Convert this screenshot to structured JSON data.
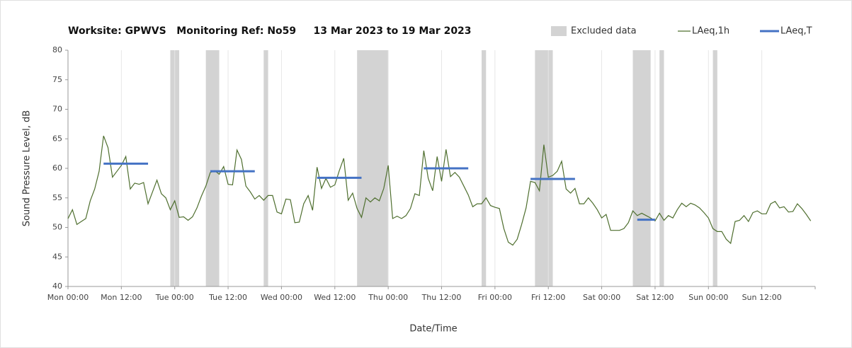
{
  "chart_data": {
    "type": "line",
    "title": "Worksite: GPWVS   Monitoring Ref: No59     13 Mar 2023 to 19 Mar 2023",
    "xlabel": "Date/Time",
    "ylabel": "Sound Pressure Level, dB",
    "xlim": [
      0,
      168
    ],
    "ylim": [
      40,
      80
    ],
    "yticks": [
      40,
      45,
      50,
      55,
      60,
      65,
      70,
      75,
      80
    ],
    "xticks": [
      {
        "value": 0,
        "label": "Mon 00:00"
      },
      {
        "value": 12,
        "label": "Mon 12:00"
      },
      {
        "value": 24,
        "label": "Tue 00:00"
      },
      {
        "value": 36,
        "label": "Tue 12:00"
      },
      {
        "value": 48,
        "label": "Wed 00:00"
      },
      {
        "value": 60,
        "label": "Wed 12:00"
      },
      {
        "value": 72,
        "label": "Thu 00:00"
      },
      {
        "value": 84,
        "label": "Thu 12:00"
      },
      {
        "value": 96,
        "label": "Fri 00:00"
      },
      {
        "value": 108,
        "label": "Fri 12:00"
      },
      {
        "value": 120,
        "label": "Sat 00:00"
      },
      {
        "value": 132,
        "label": "Sat 12:00"
      },
      {
        "value": 144,
        "label": "Sun 00:00"
      },
      {
        "value": 156,
        "label": "Sun 12:00"
      }
    ],
    "xgrid": true,
    "legend": "top right",
    "excluded": {
      "name": "Excluded data",
      "color": "#d3d3d3",
      "ranges": [
        [
          23,
          25
        ],
        [
          31,
          34
        ],
        [
          44,
          45
        ],
        [
          65,
          72
        ],
        [
          93,
          94
        ],
        [
          105,
          109
        ],
        [
          127,
          131
        ],
        [
          133,
          134
        ],
        [
          145,
          146
        ]
      ]
    },
    "series": [
      {
        "name": "LAeq,1h",
        "color": "#4f6f2f",
        "x": [
          0,
          1,
          2,
          3,
          4,
          5,
          6,
          7,
          8,
          9,
          10,
          11,
          12,
          13,
          14,
          15,
          16,
          17,
          18,
          19,
          20,
          21,
          22,
          23,
          24,
          25,
          26,
          27,
          28,
          29,
          30,
          31,
          32,
          33,
          34,
          35,
          36,
          37,
          38,
          39,
          40,
          41,
          42,
          43,
          44,
          45,
          46,
          47,
          48,
          49,
          50,
          51,
          52,
          53,
          54,
          55,
          56,
          57,
          58,
          59,
          60,
          61,
          62,
          63,
          64,
          65,
          66,
          67,
          68,
          69,
          70,
          71,
          72,
          73,
          74,
          75,
          76,
          77,
          78,
          79,
          80,
          81,
          82,
          83,
          84,
          85,
          86,
          87,
          88,
          89,
          90,
          91,
          92,
          93,
          94,
          95,
          96,
          97,
          98,
          99,
          100,
          101,
          102,
          103,
          104,
          105,
          106,
          107,
          108,
          109,
          110,
          111,
          112,
          113,
          114,
          115,
          116,
          117,
          118,
          119,
          120,
          121,
          122,
          123,
          124,
          125,
          126,
          127,
          128,
          129,
          130,
          131,
          132,
          133,
          134,
          135,
          136,
          137,
          138,
          139,
          140,
          141,
          142,
          143,
          144,
          145,
          146,
          147,
          148,
          149,
          150,
          151,
          152,
          153,
          154,
          155,
          156,
          157,
          158,
          159,
          160,
          161,
          162,
          163,
          164,
          165,
          166,
          167
        ],
        "values": [
          51.5,
          53,
          50.5,
          51,
          51.5,
          54.5,
          56.5,
          59.5,
          65.5,
          63.5,
          58.5,
          59.5,
          60.5,
          62,
          56.5,
          57.5,
          57.3,
          57.6,
          54,
          56,
          58,
          55.7,
          55,
          53,
          54.5,
          51.7,
          51.8,
          51.2,
          51.8,
          53.3,
          55.3,
          57,
          59.3,
          59.6,
          59,
          60.3,
          57.3,
          57.2,
          63.1,
          61.5,
          57,
          56,
          54.8,
          55.4,
          54.6,
          55.4,
          55.4,
          52.6,
          52.3,
          54.8,
          54.7,
          50.8,
          50.9,
          54,
          55.4,
          52.9,
          60.2,
          56.6,
          58.3,
          56.8,
          57.2,
          59.6,
          61.7,
          54.6,
          55.8,
          53.2,
          51.7,
          55,
          54.3,
          55,
          54.5,
          56.6,
          60.5,
          51.5,
          51.9,
          51.5,
          52,
          53.2,
          55.7,
          55.4,
          63,
          58.3,
          56.2,
          62,
          57.8,
          63.2,
          58.6,
          59.3,
          58.5,
          57,
          55.5,
          53.5,
          54,
          54,
          55,
          53.7,
          53.4,
          53.2,
          49.8,
          47.5,
          47,
          48,
          50.5,
          53.3,
          57.8,
          57.6,
          56.2,
          64,
          58.5,
          58.8,
          59.5,
          61.2,
          56.5,
          55.8,
          56.6,
          54,
          54,
          55,
          54.1,
          53,
          51.6,
          52.2,
          49.5,
          49.5,
          49.5,
          49.8,
          50.8,
          52.8,
          52,
          52.4,
          52,
          51.6,
          51.1,
          52.4,
          51.2,
          52,
          51.6,
          53,
          54.1,
          53.5,
          54.1,
          53.8,
          53.3,
          52.5,
          51.6,
          49.8,
          49.3,
          49.3,
          48,
          47.3,
          51,
          51.2,
          52,
          51,
          52.5,
          52.8,
          52.3,
          52.3,
          54,
          54.4,
          53.3,
          53.5,
          52.6,
          52.7,
          54,
          53.2,
          52.2,
          51.1
        ]
      }
    ],
    "period": {
      "name": "LAeq,T",
      "color": "#4472c4",
      "segments": [
        {
          "x": [
            8,
            18
          ],
          "value": 60.8
        },
        {
          "x": [
            32,
            42
          ],
          "value": 59.5
        },
        {
          "x": [
            56,
            66
          ],
          "value": 58.4
        },
        {
          "x": [
            80,
            90
          ],
          "value": 60
        },
        {
          "x": [
            104,
            114
          ],
          "value": 58.2
        },
        {
          "x": [
            128,
            132
          ],
          "value": 51.3
        }
      ]
    }
  }
}
